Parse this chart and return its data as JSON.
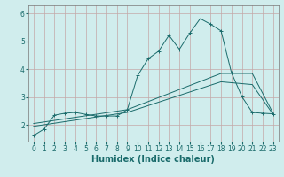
{
  "xlabel": "Humidex (Indice chaleur)",
  "xlim": [
    -0.5,
    23.5
  ],
  "ylim": [
    1.4,
    6.3
  ],
  "bg_color": "#d0eded",
  "grid_color": "#c4a8a8",
  "line_color": "#1a6b6b",
  "line1_x": [
    0,
    1,
    2,
    3,
    4,
    5,
    6,
    7,
    8,
    9,
    10,
    11,
    12,
    13,
    14,
    15,
    16,
    17,
    18,
    19,
    20,
    21,
    22,
    23
  ],
  "line1_y": [
    1.62,
    1.85,
    2.35,
    2.42,
    2.45,
    2.38,
    2.32,
    2.32,
    2.32,
    2.55,
    3.78,
    4.38,
    4.65,
    5.22,
    4.72,
    5.3,
    5.82,
    5.62,
    5.38,
    3.88,
    3.02,
    2.45,
    2.42,
    2.4
  ],
  "line2_x": [
    0,
    9,
    18,
    21,
    23
  ],
  "line2_y": [
    2.05,
    2.55,
    3.85,
    3.85,
    2.42
  ],
  "line3_x": [
    0,
    9,
    18,
    21,
    23
  ],
  "line3_y": [
    1.95,
    2.45,
    3.55,
    3.45,
    2.38
  ],
  "xticks": [
    0,
    1,
    2,
    3,
    4,
    5,
    6,
    7,
    8,
    9,
    10,
    11,
    12,
    13,
    14,
    15,
    16,
    17,
    18,
    19,
    20,
    21,
    22,
    23
  ],
  "yticks": [
    2,
    3,
    4,
    5,
    6
  ],
  "tick_fontsize": 5.5,
  "label_fontsize": 7.0
}
